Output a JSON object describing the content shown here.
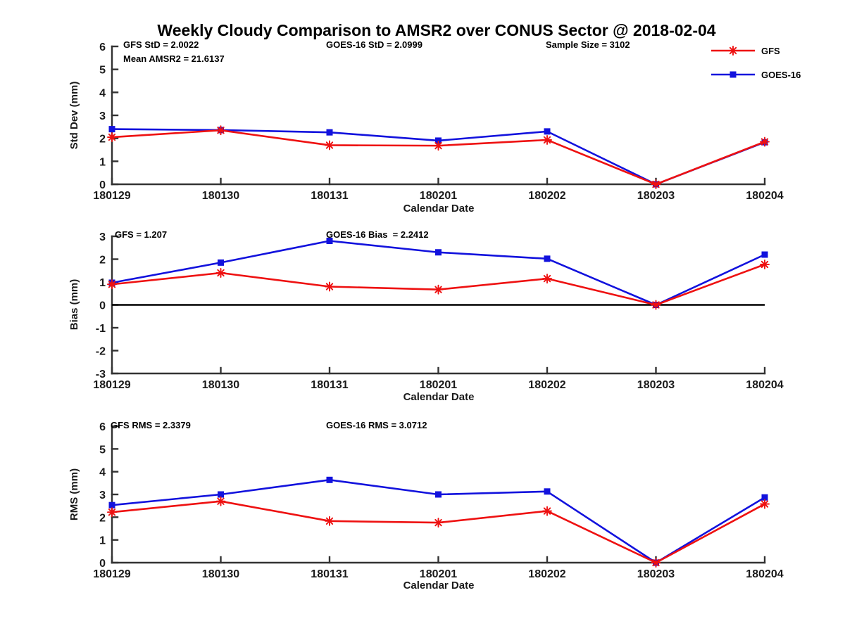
{
  "title": "Weekly Cloudy Comparison to AMSR2 over CONUS Sector @ 2018-02-04",
  "colors": {
    "gfs": "#ee1111",
    "goes16": "#1212dd",
    "axis": "#333333",
    "tick_text": "#1a1a1a",
    "zero_line": "#000000",
    "background": "#ffffff"
  },
  "legend": {
    "items": [
      {
        "label": "GFS",
        "marker": "asterisk",
        "color_key": "gfs"
      },
      {
        "label": "GOES-16",
        "marker": "square",
        "color_key": "goes16"
      }
    ]
  },
  "chart_data": [
    {
      "id": "stddev",
      "type": "line",
      "ylabel": "Std Dev (mm)",
      "xlabel": "Calendar Date",
      "ylim": [
        0,
        6
      ],
      "yticks": [
        0,
        1,
        2,
        3,
        4,
        5,
        6
      ],
      "grid": false,
      "categories": [
        "180129",
        "180130",
        "180131",
        "180201",
        "180202",
        "180203",
        "180204"
      ],
      "series": [
        {
          "name": "GFS",
          "color_key": "gfs",
          "marker": "asterisk",
          "values": [
            2.05,
            2.35,
            1.7,
            1.68,
            1.93,
            0.0,
            1.85
          ]
        },
        {
          "name": "GOES-16",
          "color_key": "goes16",
          "marker": "square",
          "values": [
            2.4,
            2.36,
            2.26,
            1.9,
            2.3,
            0.0,
            1.83
          ]
        }
      ],
      "annotations": [
        {
          "text": "GFS StD = 2.0022"
        },
        {
          "text": "Mean AMSR2 = 21.6137"
        },
        {
          "text": "GOES-16 StD = 2.0999"
        },
        {
          "text": "Sample Size = 3102"
        }
      ]
    },
    {
      "id": "bias",
      "type": "line",
      "ylabel": "Bias (mm)",
      "xlabel": "Calendar Date",
      "ylim": [
        -3,
        3
      ],
      "yticks": [
        -3,
        -2,
        -1,
        0,
        1,
        2,
        3
      ],
      "zero_line": true,
      "grid": false,
      "categories": [
        "180129",
        "180130",
        "180131",
        "180201",
        "180202",
        "180203",
        "180204"
      ],
      "series": [
        {
          "name": "GFS",
          "color_key": "gfs",
          "marker": "asterisk",
          "values": [
            0.9,
            1.4,
            0.8,
            0.67,
            1.15,
            0.0,
            1.77
          ]
        },
        {
          "name": "GOES-16",
          "color_key": "goes16",
          "marker": "square",
          "values": [
            0.97,
            1.85,
            2.8,
            2.3,
            2.02,
            0.0,
            2.2
          ]
        }
      ],
      "annotations": [
        {
          "text": "GFS = 1.207"
        },
        {
          "text": "GOES-16 Bias  = 2.2412"
        }
      ]
    },
    {
      "id": "rms",
      "type": "line",
      "ylabel": "RMS (mm)",
      "xlabel": "Calendar Date",
      "ylim": [
        0,
        6
      ],
      "yticks": [
        0,
        1,
        2,
        3,
        4,
        5,
        6
      ],
      "grid": false,
      "categories": [
        "180129",
        "180130",
        "180131",
        "180201",
        "180202",
        "180203",
        "180204"
      ],
      "series": [
        {
          "name": "GFS",
          "color_key": "gfs",
          "marker": "asterisk",
          "values": [
            2.22,
            2.7,
            1.83,
            1.76,
            2.27,
            0.0,
            2.58
          ]
        },
        {
          "name": "GOES-16",
          "color_key": "goes16",
          "marker": "square",
          "values": [
            2.53,
            3.0,
            3.64,
            3.0,
            3.13,
            0.0,
            2.87
          ]
        }
      ],
      "annotations": [
        {
          "text": "GFS RMS = 2.3379"
        },
        {
          "text": "GOES-16 RMS = 3.0712"
        }
      ]
    }
  ]
}
